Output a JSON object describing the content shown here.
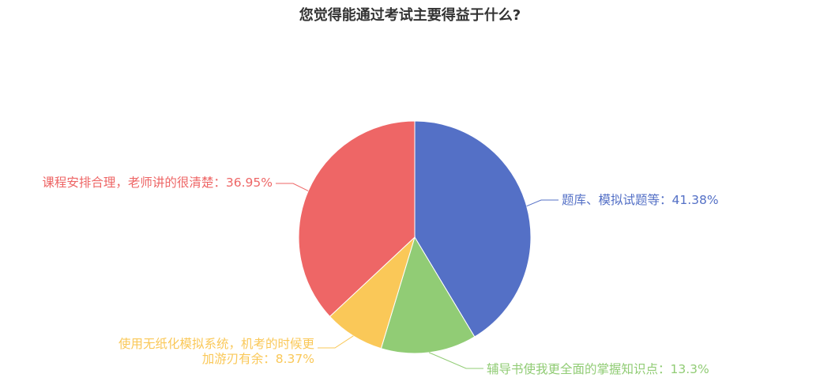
{
  "chart_data": {
    "type": "pie",
    "title": "您觉得能通过考试主要得益于什么?",
    "slices": [
      {
        "name": "题库、模拟试题等",
        "value": 41.38,
        "label": "题库、模拟试题等：41.38%",
        "color": "#5470c6"
      },
      {
        "name": "辅导书使我更全面的掌握知识点",
        "value": 13.3,
        "label": "辅导书使我更全面的掌握知识点：13.3%",
        "color": "#91cc75"
      },
      {
        "name": "使用无纸化模拟系统，机考的时候更加游刃有余",
        "value": 8.37,
        "label_lines": [
          "使用无纸化模拟系统，机考的时候更",
          "加游刃有余：8.37%"
        ],
        "color": "#fac858"
      },
      {
        "name": "课程安排合理，老师讲的很清楚",
        "value": 36.95,
        "label": "课程安排合理，老师讲的很清楚：36.95%",
        "color": "#ee6666"
      }
    ]
  }
}
